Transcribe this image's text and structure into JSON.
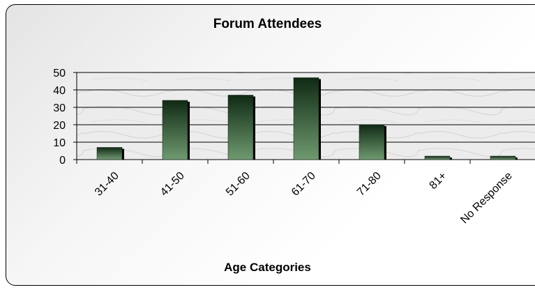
{
  "chart_data": {
    "type": "bar",
    "title": "Forum Attendees",
    "xlabel": "Age Categories",
    "ylabel": "",
    "categories": [
      "31-40",
      "41-50",
      "51-60",
      "61-70",
      "71-80",
      "81+",
      "No Response"
    ],
    "values": [
      7,
      34,
      37,
      47,
      20,
      2,
      2
    ],
    "ylim": [
      0,
      50
    ],
    "yticks": [
      0,
      10,
      20,
      30,
      40,
      50
    ],
    "grid": true,
    "legend": "none",
    "colors": {
      "bar_light": "#6f9a6f",
      "bar_dark": "#0f2a14",
      "bar_shadow": "#000000",
      "plot_area": "#eeeeee",
      "grid": "#000000"
    }
  }
}
